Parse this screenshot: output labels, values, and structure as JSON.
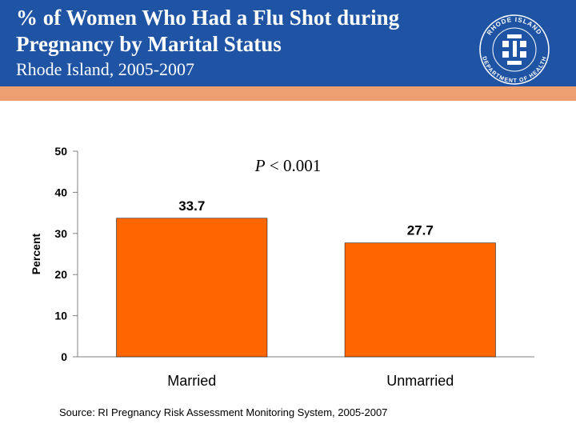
{
  "header": {
    "title": "% of Women Who Had a Flu Shot during Pregnancy  by Marital Status",
    "subtitle": "Rhode Island, 2005-2007",
    "seal_text_top": "RHODE ISLAND",
    "seal_text_bottom": "DEPARTMENT OF HEALTH"
  },
  "colors": {
    "header_bg": "#1f54a5",
    "accent_bar": "#ee9f72",
    "bar_fill": "#ff6600"
  },
  "chart_data": {
    "type": "bar",
    "categories": [
      "Married",
      "Unmarried"
    ],
    "values": [
      33.7,
      27.7
    ],
    "value_labels": [
      "33.7",
      "27.7"
    ],
    "ylabel": "Percent",
    "xlabel": "",
    "ylim": [
      0,
      50
    ],
    "yticks": [
      0,
      10,
      20,
      30,
      40,
      50
    ],
    "annotation": "P < 0.001",
    "grid": false,
    "legend": "none"
  },
  "footer": {
    "source": "Source: RI Pregnancy Risk Assessment Monitoring System, 2005-2007"
  }
}
